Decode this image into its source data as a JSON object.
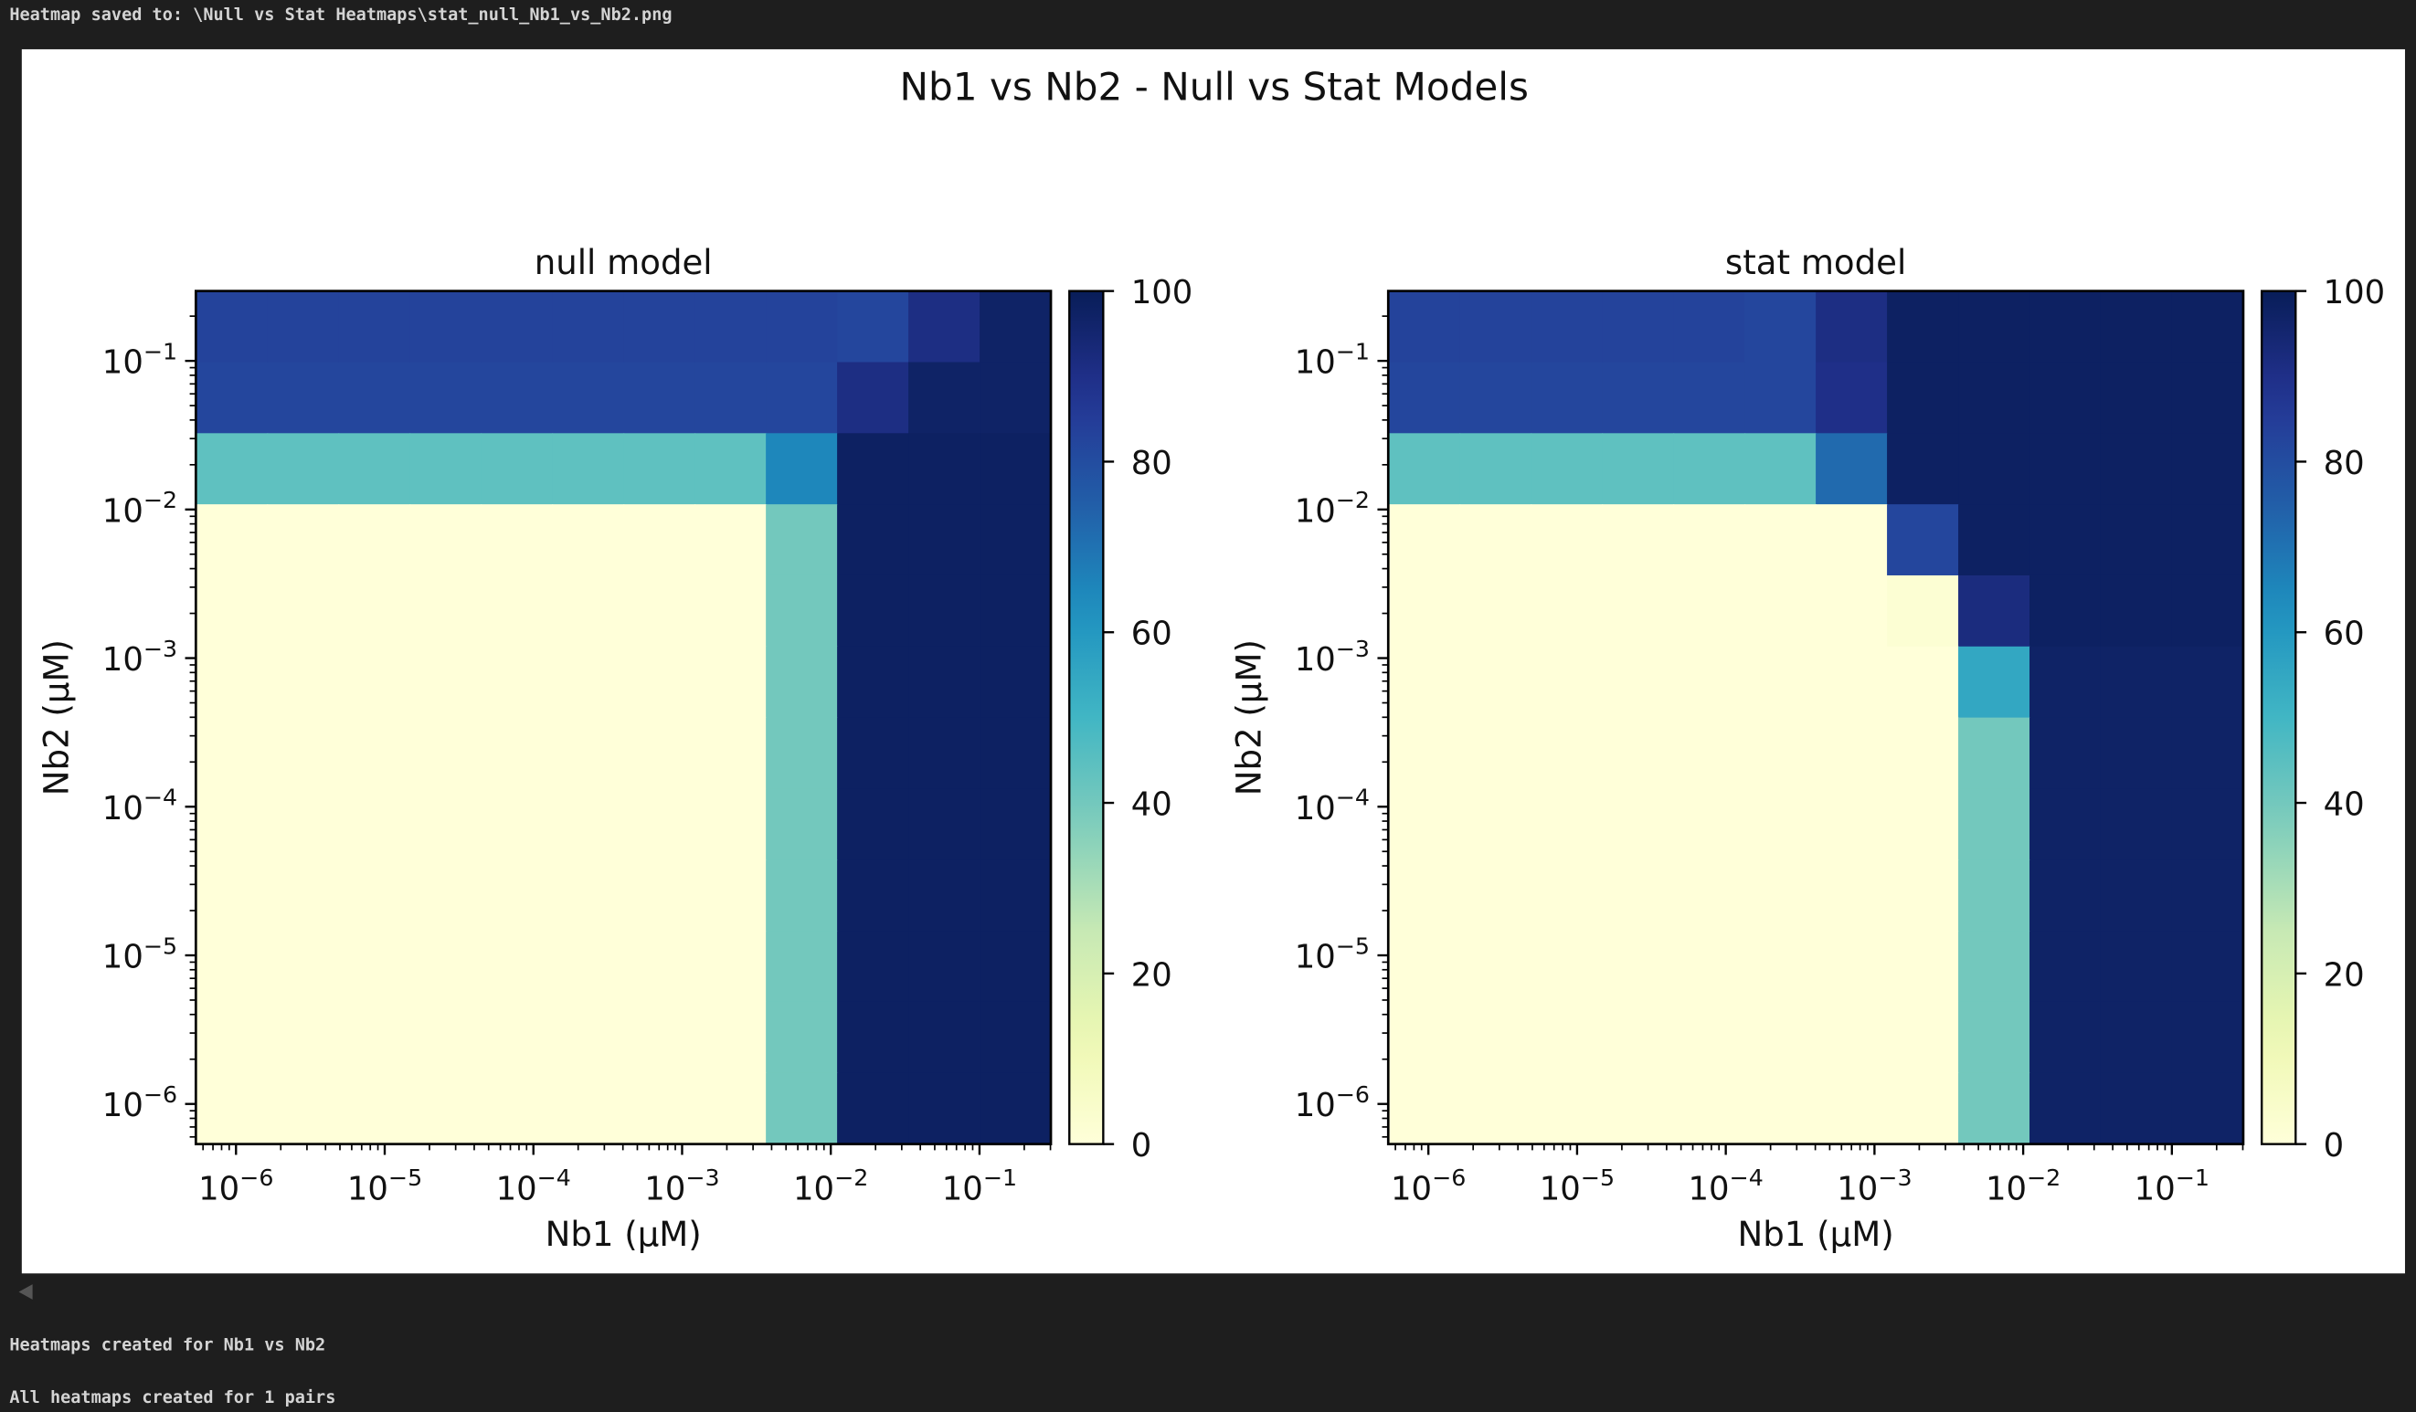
{
  "terminal": {
    "saved_line": "Heatmap saved to: \\Null vs Stat Heatmaps\\stat_null_Nb1_vs_Nb2.png",
    "created_line": "Heatmaps created for Nb1 vs Nb2",
    "all_line": "All heatmaps created for 1 pairs",
    "scroll_left_icon": "triangle-left"
  },
  "figure": {
    "suptitle": "Nb1 vs Nb2 - Null vs Stat Models"
  },
  "colormap": [
    "#ffffd9",
    "#edf8b1",
    "#c7e9b4",
    "#7fcdbb",
    "#41b6c4",
    "#1d91c0",
    "#225ea8",
    "#253494",
    "#081d58"
  ],
  "chart_data": [
    {
      "type": "heatmap",
      "title": "null model",
      "xlabel": "Nb1 (µM)",
      "ylabel": "Nb2 (µM)",
      "xscale": "log",
      "yscale": "log",
      "xlim_log10": [
        -6.27,
        -0.52
      ],
      "ylim_log10": [
        -6.27,
        -0.53
      ],
      "xtick_exponents": [
        -6,
        -5,
        -4,
        -3,
        -2,
        -1
      ],
      "ytick_exponents": [
        -6,
        -5,
        -4,
        -3,
        -2,
        -1
      ],
      "colorbar": {
        "range": [
          0,
          100
        ],
        "ticks": [
          0,
          20,
          40,
          60,
          80,
          100
        ]
      },
      "rows_top_to_bottom": [
        [
          83,
          83,
          83,
          83,
          83,
          83,
          83,
          83,
          83,
          82,
          91,
          97
        ],
        [
          82,
          82,
          82,
          82,
          82,
          82,
          82,
          82,
          82,
          91,
          97,
          97
        ],
        [
          44,
          44,
          44,
          44,
          44,
          44,
          44,
          44,
          65,
          98,
          98,
          98
        ],
        [
          0,
          0,
          0,
          0,
          0,
          0,
          0,
          0,
          40,
          98,
          98,
          98
        ],
        [
          0,
          0,
          0,
          0,
          0,
          0,
          0,
          0,
          40,
          98,
          98,
          98
        ],
        [
          0,
          0,
          0,
          0,
          0,
          0,
          0,
          0,
          40,
          98,
          98,
          98
        ],
        [
          0,
          0,
          0,
          0,
          0,
          0,
          0,
          0,
          40,
          98,
          98,
          98
        ],
        [
          0,
          0,
          0,
          0,
          0,
          0,
          0,
          0,
          40,
          98,
          98,
          98
        ],
        [
          0,
          0,
          0,
          0,
          0,
          0,
          0,
          0,
          40,
          98,
          98,
          98
        ],
        [
          0,
          0,
          0,
          0,
          0,
          0,
          0,
          0,
          40,
          98,
          98,
          98
        ],
        [
          0,
          0,
          0,
          0,
          0,
          0,
          0,
          0,
          40,
          98,
          98,
          98
        ],
        [
          0,
          0,
          0,
          0,
          0,
          0,
          0,
          0,
          40,
          98,
          98,
          98
        ]
      ]
    },
    {
      "type": "heatmap",
      "title": "stat model",
      "xlabel": "Nb1 (µM)",
      "ylabel": "Nb2 (µM)",
      "xscale": "log",
      "yscale": "log",
      "xlim_log10": [
        -6.27,
        -0.52
      ],
      "ylim_log10": [
        -6.27,
        -0.53
      ],
      "xtick_exponents": [
        -6,
        -5,
        -4,
        -3,
        -2,
        -1
      ],
      "ytick_exponents": [
        -6,
        -5,
        -4,
        -3,
        -2,
        -1
      ],
      "colorbar": {
        "range": [
          0,
          100
        ],
        "ticks": [
          0,
          20,
          40,
          60,
          80,
          100
        ]
      },
      "rows_top_to_bottom": [
        [
          83,
          83,
          83,
          83,
          83,
          82,
          91,
          98,
          98,
          98,
          98,
          98
        ],
        [
          82,
          82,
          82,
          82,
          82,
          82,
          90,
          98,
          98,
          98,
          98,
          98
        ],
        [
          44,
          44,
          44,
          44,
          44,
          44,
          72,
          98,
          98,
          98,
          98,
          98
        ],
        [
          0,
          0,
          0,
          0,
          0,
          0,
          0,
          82,
          98,
          98,
          98,
          98
        ],
        [
          0,
          0,
          0,
          0,
          0,
          0,
          0,
          2,
          92,
          98,
          98,
          98
        ],
        [
          0,
          0,
          0,
          0,
          0,
          0,
          0,
          0,
          55,
          97,
          97,
          97
        ],
        [
          0,
          0,
          0,
          0,
          0,
          0,
          0,
          0,
          40,
          97,
          97,
          97
        ],
        [
          0,
          0,
          0,
          0,
          0,
          0,
          0,
          0,
          40,
          97,
          97,
          97
        ],
        [
          0,
          0,
          0,
          0,
          0,
          0,
          0,
          0,
          40,
          97,
          97,
          97
        ],
        [
          0,
          0,
          0,
          0,
          0,
          0,
          0,
          0,
          40,
          97,
          97,
          97
        ],
        [
          0,
          0,
          0,
          0,
          0,
          0,
          0,
          0,
          40,
          97,
          97,
          97
        ],
        [
          0,
          0,
          0,
          0,
          0,
          0,
          0,
          0,
          40,
          97,
          97,
          97
        ]
      ]
    }
  ]
}
